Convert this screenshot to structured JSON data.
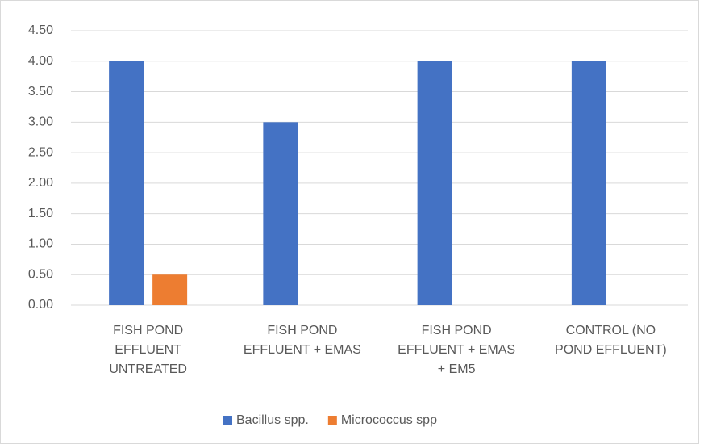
{
  "chart_data": {
    "type": "bar",
    "categories": [
      "FISH POND\nEFFLUENT\nUNTREATED",
      "FISH POND\nEFFLUENT + EMAS",
      "FISH POND\nEFFLUENT + EMAS\n+ EM5",
      "CONTROL (NO\nPOND EFFLUENT)"
    ],
    "series": [
      {
        "name": "Bacillus spp.",
        "color": "#4472c4",
        "values": [
          4,
          3,
          4,
          4
        ]
      },
      {
        "name": "Micrococcus spp",
        "color": "#ed7d31",
        "values": [
          0.5,
          0,
          0,
          0
        ]
      }
    ],
    "ylim": [
      0,
      4.5
    ],
    "yticks": [
      {
        "value": 0,
        "label": "0.00"
      },
      {
        "value": 0.5,
        "label": "0.50"
      },
      {
        "value": 1,
        "label": "1.00"
      },
      {
        "value": 1.5,
        "label": "1.50"
      },
      {
        "value": 2,
        "label": "2.00"
      },
      {
        "value": 2.5,
        "label": "2.50"
      },
      {
        "value": 3,
        "label": "3.00"
      },
      {
        "value": 3.5,
        "label": "3.50"
      },
      {
        "value": 4,
        "label": "4.00"
      },
      {
        "value": 4.5,
        "label": "4.50"
      }
    ],
    "grid": true,
    "legend": "bottom"
  }
}
